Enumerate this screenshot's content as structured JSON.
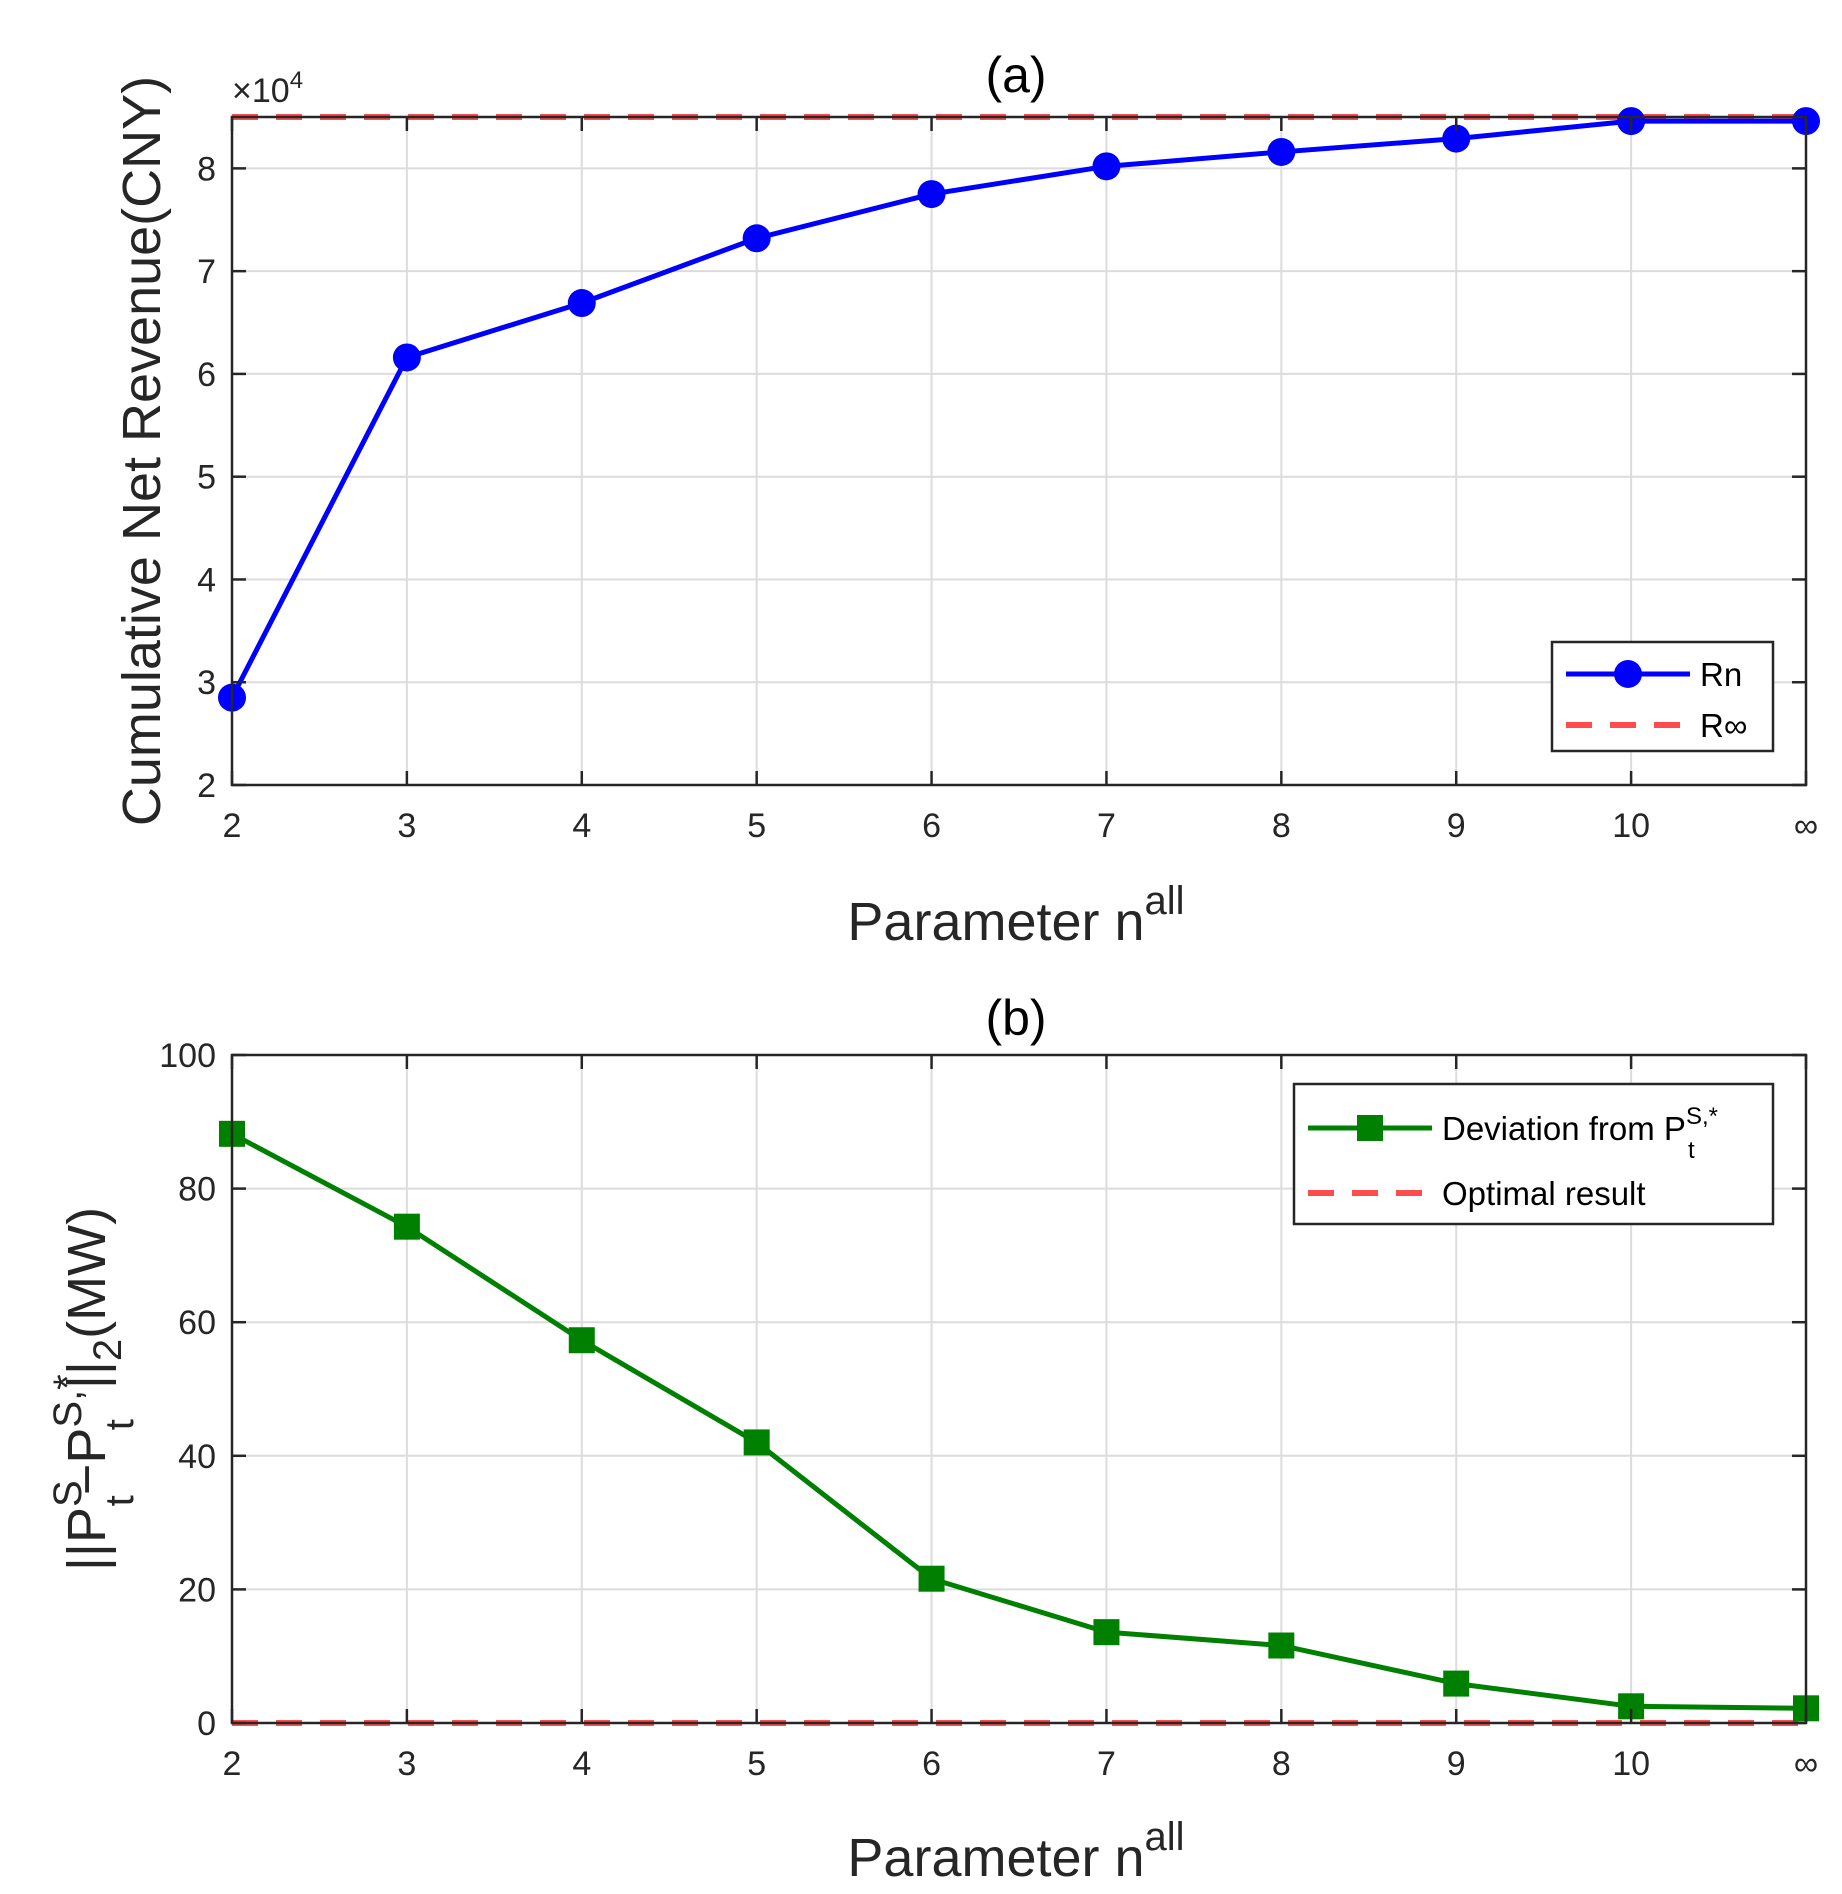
{
  "chart_data": [
    {
      "id": "a",
      "type": "line",
      "title": "(a)",
      "xlabel": "Parameter n",
      "xlabel_sup": "all",
      "ylabel": "Cumulative Net Revenue(CNY)",
      "y_exponent": "×10",
      "y_exponent_power": "4",
      "categories": [
        "2",
        "3",
        "4",
        "5",
        "6",
        "7",
        "8",
        "9",
        "10",
        "∞"
      ],
      "ylim": [
        2,
        8.5
      ],
      "yticks": [
        2,
        3,
        4,
        5,
        6,
        7,
        8
      ],
      "series": [
        {
          "name": "Rn",
          "color": "#0000ff",
          "marker": "circle",
          "values": [
            2.85,
            6.16,
            6.69,
            7.32,
            7.75,
            8.02,
            8.16,
            8.29,
            8.46,
            8.46
          ]
        },
        {
          "name": "R∞",
          "color": "#ff4d4d",
          "dashed": true,
          "value": 8.5
        }
      ],
      "legend_position": "bottom-right",
      "grid": true
    },
    {
      "id": "b",
      "type": "line",
      "title": "(b)",
      "xlabel": "Parameter n",
      "xlabel_sup": "all",
      "ylabel": "||P_t^S − P_t^(S,*)||_2(MW)",
      "ylabel_parts": {
        "pipes": "||",
        "P": "P",
        "S": "S",
        "t": "t",
        "minus": "−",
        "star": "S,*",
        "norm": "||",
        "two": "2",
        "unit": "(MW)"
      },
      "categories": [
        "2",
        "3",
        "4",
        "5",
        "6",
        "7",
        "8",
        "9",
        "10",
        "∞"
      ],
      "ylim": [
        0,
        100
      ],
      "yticks": [
        0,
        20,
        40,
        60,
        80,
        100
      ],
      "series": [
        {
          "name": "Deviation from P",
          "name_sup": "S,*",
          "name_sub": "t",
          "color": "#008000",
          "marker": "square",
          "values": [
            88.2,
            74.3,
            57.3,
            42.0,
            21.6,
            13.6,
            11.6,
            5.9,
            2.5,
            2.2
          ]
        },
        {
          "name": "Optimal result",
          "color": "#ff4d4d",
          "dashed": true,
          "value": 0
        }
      ],
      "legend_position": "top-right",
      "grid": true
    }
  ]
}
